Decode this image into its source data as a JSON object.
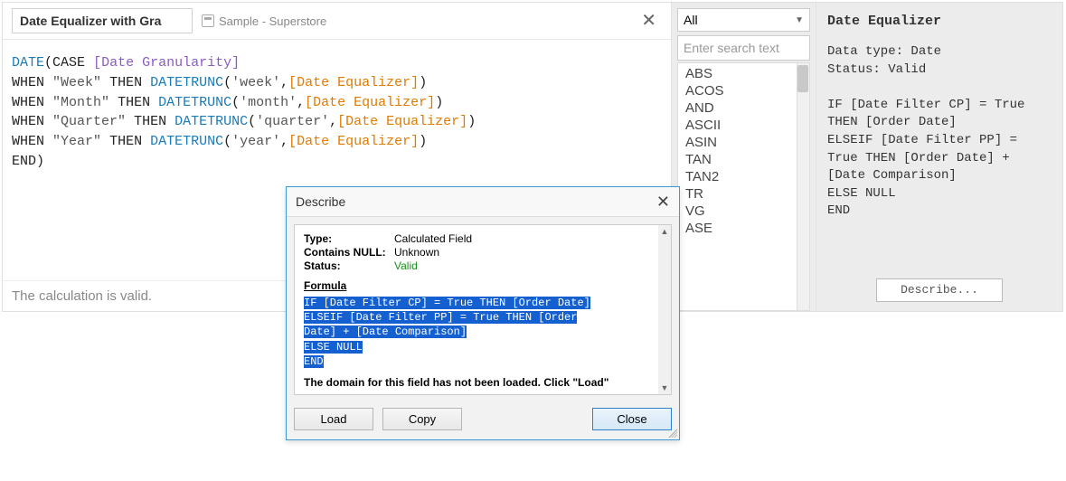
{
  "editor": {
    "field_name": "Date Equalizer with Gra",
    "datasource": "Sample - Superstore",
    "close_glyph": "✕",
    "status": "The calculation is valid.",
    "code": {
      "func_date": "DATE",
      "kw_case": "CASE",
      "param": "[Date Granularity]",
      "kw_when": "WHEN",
      "kw_then": "THEN",
      "func_trunc": "DATETRUNC",
      "field_eq": "[Date Equalizer]",
      "lit_week": "\"Week\"",
      "arg_week": "'week'",
      "lit_month": "\"Month\"",
      "arg_month": "'month'",
      "lit_quarter": "\"Quarter\"",
      "arg_quarter": "'quarter'",
      "lit_year": "\"Year\"",
      "arg_year": "'year'",
      "kw_end": "END"
    }
  },
  "funclist": {
    "category": "All",
    "search_placeholder": "Enter search text",
    "items": [
      "ABS",
      "ACOS",
      "AND",
      "ASCII",
      "ASIN",
      "TAN",
      "TAN2",
      "TR",
      "VG",
      "ASE"
    ]
  },
  "help": {
    "title": "Date Equalizer",
    "body": "Data type: Date\nStatus: Valid\n\nIF [Date Filter CP] = True THEN [Order Date]\nELSEIF [Date Filter PP] = True THEN [Order Date] + [Date Comparison]\nELSE NULL\nEND",
    "describe_label": "Describe..."
  },
  "dialog": {
    "title": "Describe",
    "close_glyph": "✕",
    "type_label": "Type:",
    "type_value": "Calculated Field",
    "null_label": "Contains NULL:",
    "null_value": "Unknown",
    "status_label": "Status:",
    "status_value": "Valid",
    "formula_label": "Formula",
    "formula_lines": [
      "IF [Date Filter CP] = True THEN [Order Date]",
      "ELSEIF [Date Filter PP] = True THEN [Order",
      "Date] + [Date Comparison]",
      "ELSE NULL",
      "END"
    ],
    "domain_msg": "The domain for this field has not been loaded. Click \"Load\"",
    "btn_load": "Load",
    "btn_copy": "Copy",
    "btn_close": "Close"
  },
  "colors": {
    "func": "#1a7bb9",
    "field": "#e07b00",
    "param": "#8a5bc4",
    "selection_bg": "#1560d0",
    "valid": "#1a8f1a",
    "dialog_border": "#3a9bd8",
    "panel_bg": "#ececec"
  }
}
